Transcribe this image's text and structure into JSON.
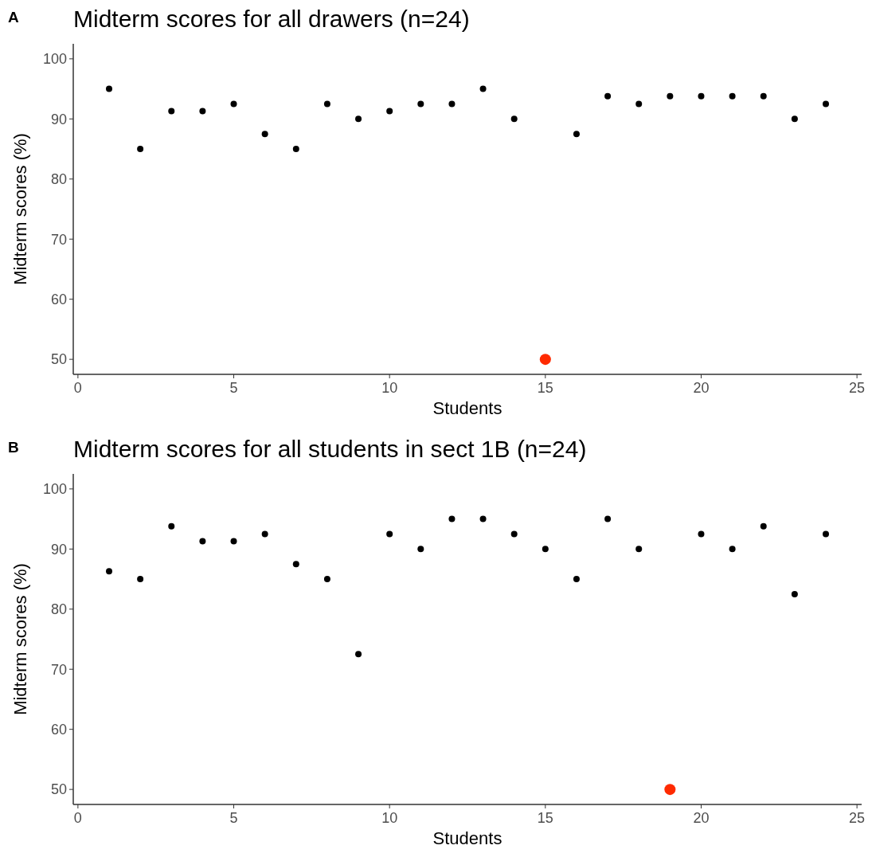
{
  "chart_data": [
    {
      "type": "scatter",
      "title": "Midterm scores for all drawers (n=24)",
      "xlabel": "Students",
      "ylabel": "Midterm scores (%)",
      "annotations": [
        "A"
      ],
      "xlim": [
        -0.15,
        25.15
      ],
      "xticks": [
        0,
        5,
        10,
        15,
        20,
        25
      ],
      "ylim": [
        47.5,
        102.5
      ],
      "yticks": [
        50,
        60,
        70,
        80,
        90,
        100
      ],
      "marker": "circle",
      "series": [
        {
          "color": "#000000",
          "x": [
            1,
            2,
            3,
            4,
            5,
            6,
            7,
            8,
            9,
            10,
            11,
            12,
            13,
            14,
            16,
            17,
            18,
            19,
            20,
            21,
            22,
            23,
            24
          ],
          "values": [
            95,
            85,
            91.3,
            91.3,
            92.5,
            87.5,
            85,
            92.5,
            90,
            91.3,
            92.5,
            92.5,
            95,
            90,
            87.5,
            93.8,
            92.5,
            93.8,
            93.8,
            93.8,
            93.8,
            90,
            92.5
          ]
        },
        {
          "color": "#ff2a00",
          "x": [
            15
          ],
          "values": [
            50
          ]
        }
      ]
    },
    {
      "type": "scatter",
      "title": "Midterm scores for all students in sect 1B (n=24)",
      "xlabel": "Students",
      "ylabel": "Midterm scores (%)",
      "annotations": [
        "B"
      ],
      "xlim": [
        -0.15,
        25.15
      ],
      "xticks": [
        0,
        5,
        10,
        15,
        20,
        25
      ],
      "ylim": [
        47.5,
        102.5
      ],
      "yticks": [
        50,
        60,
        70,
        80,
        90,
        100
      ],
      "marker": "circle",
      "series": [
        {
          "color": "#000000",
          "x": [
            1,
            2,
            3,
            4,
            5,
            6,
            7,
            8,
            9,
            10,
            11,
            12,
            13,
            14,
            15,
            16,
            17,
            18,
            20,
            21,
            22,
            23,
            24
          ],
          "values": [
            86.3,
            85,
            93.8,
            91.3,
            91.3,
            92.5,
            87.5,
            85,
            72.5,
            92.5,
            90,
            95,
            95,
            92.5,
            90,
            85,
            95,
            90,
            92.5,
            90,
            93.8,
            82.5,
            92.5
          ]
        },
        {
          "color": "#ff2a00",
          "x": [
            19
          ],
          "values": [
            50
          ]
        }
      ]
    }
  ]
}
